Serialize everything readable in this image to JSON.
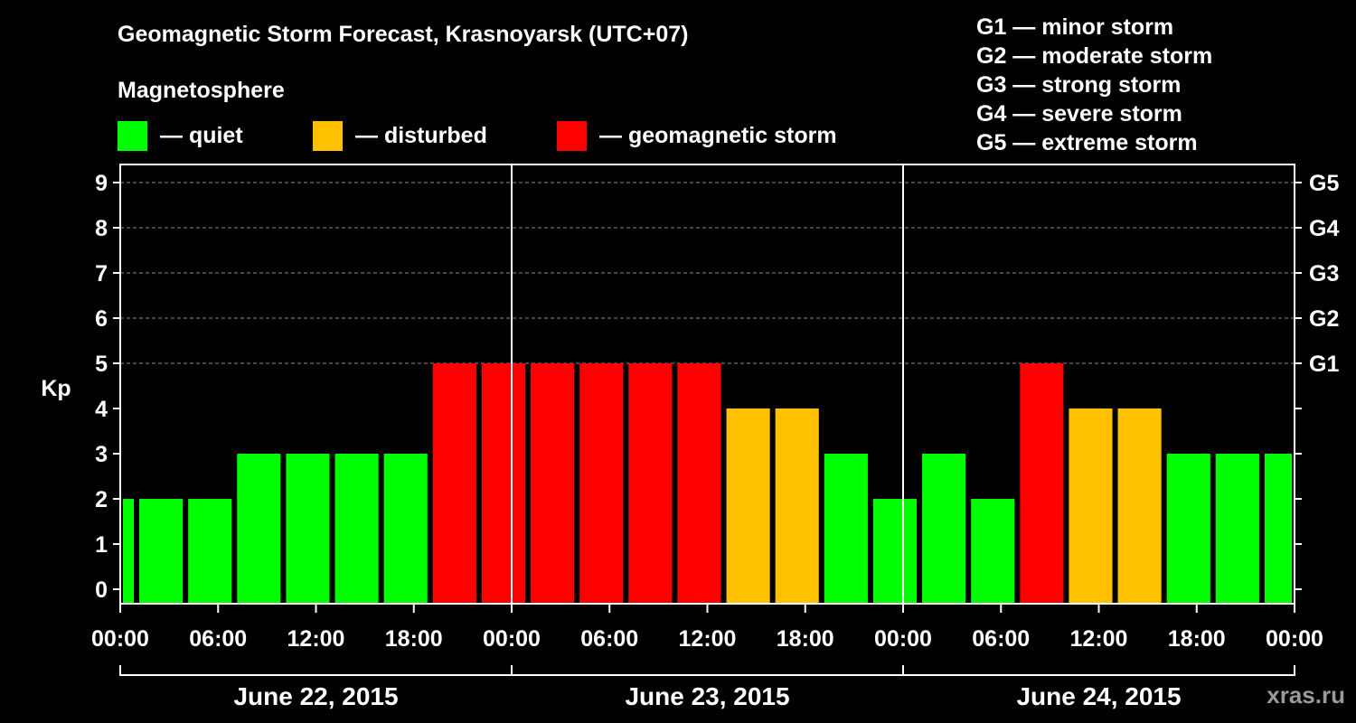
{
  "title": "Geomagnetic Storm Forecast, Krasnoyarsk (UTC+07)",
  "legend": {
    "title": "Magnetosphere",
    "items": [
      {
        "label": "— quiet",
        "color": "#00ff00"
      },
      {
        "label": "— disturbed",
        "color": "#ffc000"
      },
      {
        "label": "— geomagnetic storm",
        "color": "#ff0000"
      }
    ]
  },
  "g_scale": [
    "G1 — minor storm",
    "G2 — moderate storm",
    "G3 — strong storm",
    "G4 — severe storm",
    "G5 — extreme storm"
  ],
  "watermark": "xras.ru",
  "colors": {
    "quiet": "#00ff00",
    "disturbed": "#ffc000",
    "storm": "#ff0000"
  },
  "chart_data": {
    "type": "bar",
    "title": "Geomagnetic Storm Forecast, Krasnoyarsk (UTC+07)",
    "ylabel": "Kp",
    "ylim": [
      0,
      9
    ],
    "y_ticks": [
      "0",
      "1",
      "2",
      "3",
      "4",
      "5",
      "6",
      "7",
      "8",
      "9"
    ],
    "right_ticks": [
      {
        "kp": 5,
        "label": "G1"
      },
      {
        "kp": 6,
        "label": "G2"
      },
      {
        "kp": 7,
        "label": "G3"
      },
      {
        "kp": 8,
        "label": "G4"
      },
      {
        "kp": 9,
        "label": "G5"
      }
    ],
    "x_range_hours": [
      0,
      72
    ],
    "x_ticks": [
      {
        "hour": 0,
        "label": "00:00"
      },
      {
        "hour": 6,
        "label": "06:00"
      },
      {
        "hour": 12,
        "label": "12:00"
      },
      {
        "hour": 18,
        "label": "18:00"
      },
      {
        "hour": 24,
        "label": "00:00"
      },
      {
        "hour": 30,
        "label": "06:00"
      },
      {
        "hour": 36,
        "label": "12:00"
      },
      {
        "hour": 42,
        "label": "18:00"
      },
      {
        "hour": 48,
        "label": "00:00"
      },
      {
        "hour": 54,
        "label": "06:00"
      },
      {
        "hour": 60,
        "label": "12:00"
      },
      {
        "hour": 66,
        "label": "18:00"
      },
      {
        "hour": 72,
        "label": "00:00"
      }
    ],
    "days": [
      {
        "label": "June 22, 2015",
        "start_hour": 0,
        "end_hour": 24
      },
      {
        "label": "June 23, 2015",
        "start_hour": 24,
        "end_hour": 48
      },
      {
        "label": "June 24, 2015",
        "start_hour": 48,
        "end_hour": 72
      }
    ],
    "bars": [
      {
        "start_hour": 0,
        "end_hour": 1,
        "kp": 2,
        "level": "quiet"
      },
      {
        "start_hour": 1,
        "end_hour": 4,
        "kp": 2,
        "level": "quiet"
      },
      {
        "start_hour": 4,
        "end_hour": 7,
        "kp": 2,
        "level": "quiet"
      },
      {
        "start_hour": 7,
        "end_hour": 10,
        "kp": 3,
        "level": "quiet"
      },
      {
        "start_hour": 10,
        "end_hour": 13,
        "kp": 3,
        "level": "quiet"
      },
      {
        "start_hour": 13,
        "end_hour": 16,
        "kp": 3,
        "level": "quiet"
      },
      {
        "start_hour": 16,
        "end_hour": 19,
        "kp": 3,
        "level": "quiet"
      },
      {
        "start_hour": 19,
        "end_hour": 22,
        "kp": 5,
        "level": "storm"
      },
      {
        "start_hour": 22,
        "end_hour": 25,
        "kp": 5,
        "level": "storm"
      },
      {
        "start_hour": 25,
        "end_hour": 28,
        "kp": 5,
        "level": "storm"
      },
      {
        "start_hour": 28,
        "end_hour": 31,
        "kp": 5,
        "level": "storm"
      },
      {
        "start_hour": 31,
        "end_hour": 34,
        "kp": 5,
        "level": "storm"
      },
      {
        "start_hour": 34,
        "end_hour": 37,
        "kp": 5,
        "level": "storm"
      },
      {
        "start_hour": 37,
        "end_hour": 40,
        "kp": 4,
        "level": "disturbed"
      },
      {
        "start_hour": 40,
        "end_hour": 43,
        "kp": 4,
        "level": "disturbed"
      },
      {
        "start_hour": 43,
        "end_hour": 46,
        "kp": 3,
        "level": "quiet"
      },
      {
        "start_hour": 46,
        "end_hour": 49,
        "kp": 2,
        "level": "quiet"
      },
      {
        "start_hour": 49,
        "end_hour": 52,
        "kp": 3,
        "level": "quiet"
      },
      {
        "start_hour": 52,
        "end_hour": 55,
        "kp": 2,
        "level": "quiet"
      },
      {
        "start_hour": 55,
        "end_hour": 58,
        "kp": 5,
        "level": "storm"
      },
      {
        "start_hour": 58,
        "end_hour": 61,
        "kp": 4,
        "level": "disturbed"
      },
      {
        "start_hour": 61,
        "end_hour": 64,
        "kp": 4,
        "level": "disturbed"
      },
      {
        "start_hour": 64,
        "end_hour": 67,
        "kp": 3,
        "level": "quiet"
      },
      {
        "start_hour": 67,
        "end_hour": 70,
        "kp": 3,
        "level": "quiet"
      },
      {
        "start_hour": 70,
        "end_hour": 72,
        "kp": 3,
        "level": "quiet"
      }
    ]
  }
}
